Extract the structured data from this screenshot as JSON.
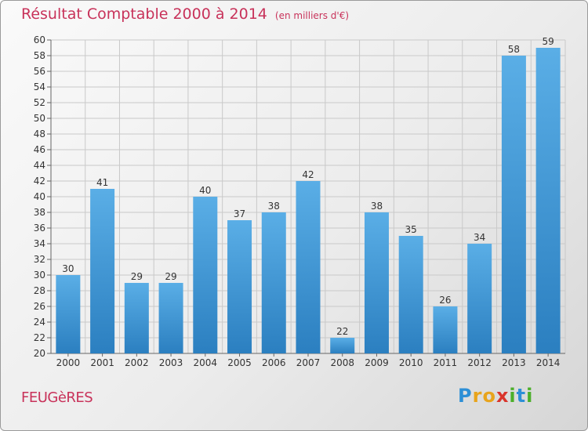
{
  "title": "Résultat Comptable 2000 à 2014",
  "unit_note": "(en milliers d'€)",
  "commune": "FEUGèRES",
  "logo": {
    "text": "Proxiti",
    "letters": [
      {
        "ch": "P",
        "color": "#2d8fd6"
      },
      {
        "ch": "r",
        "color": "#e8a41c"
      },
      {
        "ch": "o",
        "color": "#e8a41c"
      },
      {
        "ch": "x",
        "color": "#d9342b"
      },
      {
        "ch": "i",
        "color": "#4caf2a"
      },
      {
        "ch": "t",
        "color": "#2d8fd6"
      },
      {
        "ch": "i",
        "color": "#4caf2a"
      }
    ]
  },
  "colors": {
    "bar_top": "#5aaee6",
    "bar_bottom": "#2b7fc0",
    "title": "#c8325a",
    "grid": "#c9c9c9"
  },
  "chart_data": {
    "type": "bar",
    "categories": [
      "2000",
      "2001",
      "2002",
      "2003",
      "2004",
      "2005",
      "2006",
      "2007",
      "2008",
      "2009",
      "2010",
      "2011",
      "2012",
      "2013",
      "2014"
    ],
    "values": [
      30,
      41,
      29,
      29,
      40,
      37,
      38,
      42,
      22,
      38,
      35,
      26,
      34,
      58,
      59
    ],
    "ylim": [
      20,
      60
    ],
    "ytick_step": 2,
    "grid": true
  }
}
